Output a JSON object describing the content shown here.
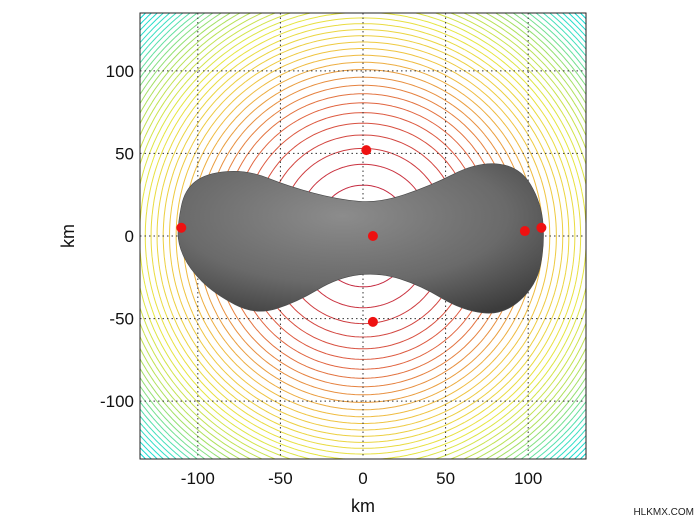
{
  "chart_data": {
    "type": "contour",
    "xlabel": "km",
    "ylabel": "km",
    "xlim": [
      -135,
      135
    ],
    "ylim": [
      -135,
      135
    ],
    "xticks": [
      -100,
      -50,
      0,
      50,
      100
    ],
    "yticks": [
      -100,
      -50,
      0,
      50,
      100
    ],
    "xtick_labels": [
      "-100",
      "-50",
      "0",
      "50",
      "100"
    ],
    "ytick_labels": [
      "-100",
      "-50",
      "0",
      "50",
      "100"
    ],
    "grid": "dotted",
    "contour_colors": [
      "#00d8d8",
      "#40e0c0",
      "#a8e060",
      "#e6e640",
      "#f0c040",
      "#e06040",
      "#c02040"
    ],
    "body_color": "#6e6e6e",
    "points": [
      {
        "x": 2,
        "y": 52
      },
      {
        "x": 6,
        "y": -52
      },
      {
        "x": -110,
        "y": 5
      },
      {
        "x": 108,
        "y": 5
      },
      {
        "x": 6,
        "y": 0
      },
      {
        "x": 98,
        "y": 3
      }
    ],
    "point_color": "#ee1111"
  },
  "watermark": "HLKMX.COM"
}
